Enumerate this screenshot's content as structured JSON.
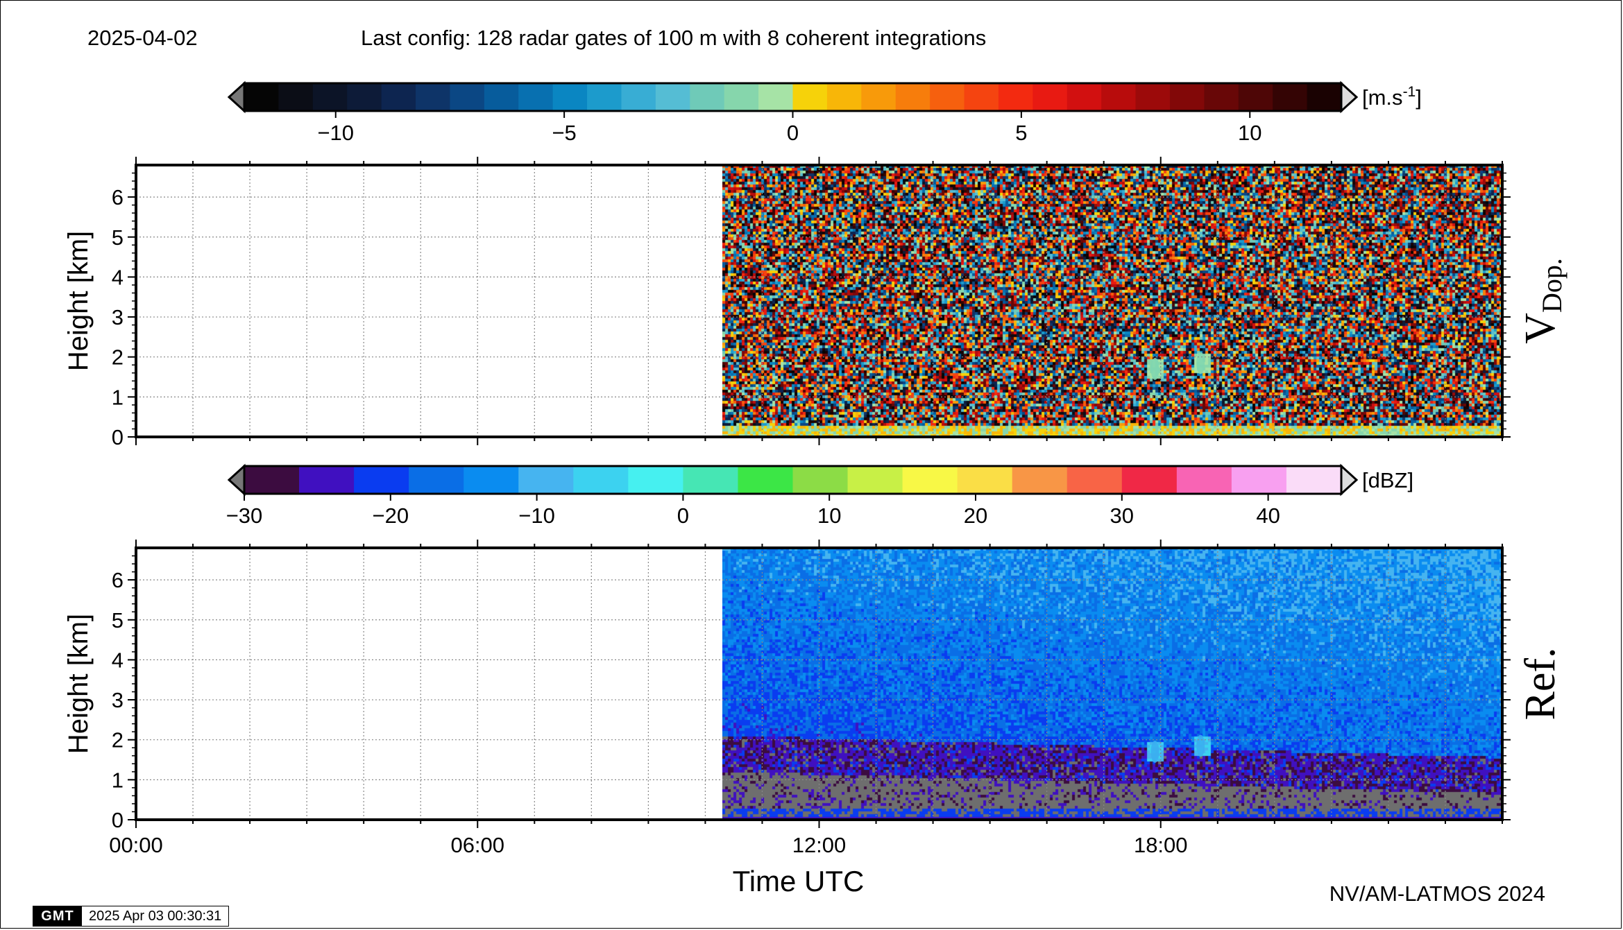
{
  "header": {
    "date": "2025-04-02",
    "config": "Last config: 128 radar gates of 100 m with 8 coherent integrations"
  },
  "footer": {
    "gmt_logo": "GMT",
    "gmt_timestamp": "2025 Apr 03 00:30:31",
    "credit": "NV/AM-LATMOS 2024"
  },
  "chart_data": [
    {
      "type": "heatmap",
      "panel_label": "VDop.",
      "panel_label_main": "V",
      "panel_label_sub": "Dop.",
      "ylabel": "Height [km]",
      "ylim": [
        0,
        6.8
      ],
      "yticks": [
        0,
        1,
        2,
        3,
        4,
        5,
        6
      ],
      "xlim": [
        0,
        24
      ],
      "xticks": [
        0,
        6,
        12,
        18
      ],
      "xtick_labels": [
        "00:00",
        "06:00",
        "12:00",
        "18:00"
      ],
      "data_start_hour": 10.3,
      "data_end_hour": 24,
      "colorbar": {
        "unit_main": "[m.s",
        "unit_sup": "-1",
        "unit_close": "]",
        "range": [
          -12,
          12
        ],
        "ticks": [
          -10,
          -5,
          0,
          5,
          10
        ],
        "tick_labels": [
          "−10",
          "−5",
          "0",
          "5",
          "10"
        ],
        "colors": [
          "#050505",
          "#0b0d16",
          "#0c1427",
          "#0d1b38",
          "#0d2550",
          "#0e3468",
          "#0b4784",
          "#075c9c",
          "#0870b0",
          "#0a86c2",
          "#1c9bcc",
          "#38add4",
          "#55bdd4",
          "#6fcab8",
          "#86d6ac",
          "#a6e3a6",
          "#f6d20a",
          "#f8b608",
          "#f89a0a",
          "#f77d0c",
          "#f6600e",
          "#f54410",
          "#f32a10",
          "#e81a12",
          "#d21010",
          "#b80c0c",
          "#9c0a0a",
          "#820808",
          "#680707",
          "#4e0606",
          "#340404",
          "#1a0202"
        ]
      },
      "annotations": [
        {
          "feature": "echo",
          "hour": 17.9,
          "height_km": 1.7
        },
        {
          "feature": "echo",
          "hour": 18.7,
          "height_km": 1.85
        },
        {
          "feature": "surface_clutter",
          "height_km": [
            0,
            0.3
          ]
        }
      ]
    },
    {
      "type": "heatmap",
      "panel_label": "Ref.",
      "ylabel": "Height [km]",
      "xlabel": "Time UTC",
      "ylim": [
        0,
        6.8
      ],
      "yticks": [
        0,
        1,
        2,
        3,
        4,
        5,
        6
      ],
      "xlim": [
        0,
        24
      ],
      "xticks": [
        0,
        6,
        12,
        18
      ],
      "xtick_labels": [
        "00:00",
        "06:00",
        "12:00",
        "18:00"
      ],
      "data_start_hour": 10.3,
      "data_end_hour": 24,
      "colorbar": {
        "unit": "[dBZ]",
        "range": [
          -30,
          45
        ],
        "ticks": [
          -30,
          -20,
          -10,
          0,
          10,
          20,
          30,
          40
        ],
        "tick_labels": [
          "−30",
          "−20",
          "−10",
          "0",
          "10",
          "20",
          "30",
          "40"
        ],
        "colors": [
          "#3c0c40",
          "#4010c0",
          "#0a3cf0",
          "#0a6ee6",
          "#0a8cf0",
          "#46b4f0",
          "#3cd2f0",
          "#46f0f0",
          "#46e6b4",
          "#3ce646",
          "#8cdc46",
          "#c8f046",
          "#f8f846",
          "#fade46",
          "#f89646",
          "#f86446",
          "#f02846",
          "#f864b4",
          "#f8a0f0",
          "#fadcf8"
        ]
      },
      "annotations": [
        {
          "feature": "echo",
          "hour": 17.9,
          "height_km": 1.7
        },
        {
          "feature": "echo",
          "hour": 18.7,
          "height_km": 1.85
        },
        {
          "feature": "noise_floor_grey",
          "height_km": [
            0,
            1.0
          ]
        }
      ]
    }
  ]
}
